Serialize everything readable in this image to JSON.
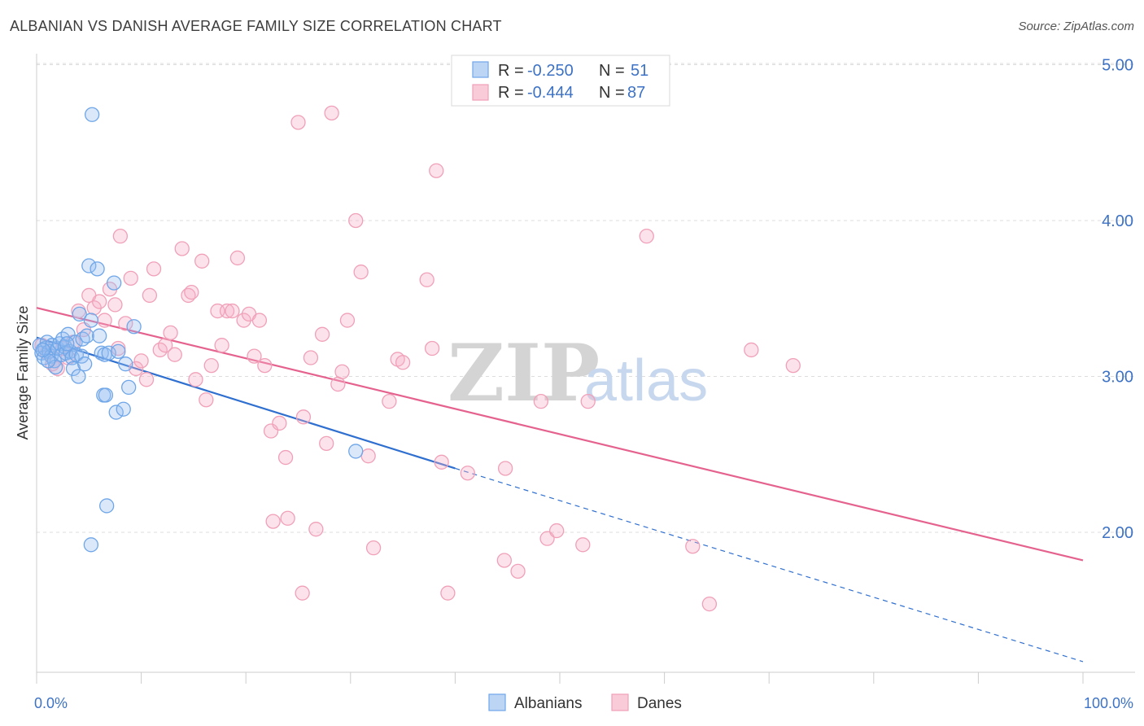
{
  "title": "ALBANIAN VS DANISH AVERAGE FAMILY SIZE CORRELATION CHART",
  "source": "Source: ZipAtlas.com",
  "watermark": {
    "zip": "ZIP",
    "atlas": "atlas"
  },
  "colors": {
    "albanians": "#6fa6e8",
    "albanians_line": "#2f6fcf",
    "danes": "#f0a0b8",
    "danes_line": "#e5628f",
    "grid": "#dddddd",
    "tick_label": "#3d72c4"
  },
  "legend": {
    "r_label": "R =",
    "n_label": "N =",
    "albanians": {
      "r": "-0.250",
      "n": "51"
    },
    "danes": {
      "r": "-0.444",
      "n": "87"
    }
  },
  "chart_data": {
    "type": "scatter",
    "title": "ALBANIAN VS DANISH AVERAGE FAMILY SIZE CORRELATION CHART",
    "xlabel": "",
    "ylabel": "Average Family Size",
    "xlim": [
      0,
      100
    ],
    "ylim": [
      1.1,
      5.1
    ],
    "x_tick_labels": [
      "0.0%",
      "100.0%"
    ],
    "y_ticks": [
      2.0,
      3.0,
      4.0,
      5.0
    ],
    "y_tick_labels": [
      "2.00",
      "3.00",
      "4.00",
      "5.00"
    ],
    "grid": true,
    "legend_position": "top-center",
    "series": [
      {
        "name": "Albanians",
        "r": -0.25,
        "n": 51,
        "trend": {
          "x0": 0,
          "y0": 3.25,
          "x1": 40,
          "y1": 2.41,
          "dashed_to_x": 100,
          "dashed_to_y": 1.17
        },
        "points": [
          [
            0.3,
            3.2
          ],
          [
            0.5,
            3.15
          ],
          [
            0.7,
            3.12
          ],
          [
            0.8,
            3.18
          ],
          [
            1.0,
            3.22
          ],
          [
            1.2,
            3.16
          ],
          [
            1.4,
            3.13
          ],
          [
            1.5,
            3.2
          ],
          [
            1.7,
            3.1
          ],
          [
            1.8,
            3.06
          ],
          [
            2.0,
            3.18
          ],
          [
            2.2,
            3.21
          ],
          [
            2.4,
            3.14
          ],
          [
            2.5,
            3.24
          ],
          [
            2.7,
            3.19
          ],
          [
            2.8,
            3.15
          ],
          [
            3.0,
            3.27
          ],
          [
            3.2,
            3.16
          ],
          [
            3.4,
            3.12
          ],
          [
            3.5,
            3.05
          ],
          [
            3.7,
            3.22
          ],
          [
            3.8,
            3.14
          ],
          [
            4.0,
            3.0
          ],
          [
            4.1,
            3.4
          ],
          [
            4.3,
            3.13
          ],
          [
            4.4,
            3.24
          ],
          [
            4.6,
            3.08
          ],
          [
            4.8,
            3.26
          ],
          [
            5.0,
            3.71
          ],
          [
            5.2,
            3.36
          ],
          [
            5.3,
            4.68
          ],
          [
            5.2,
            1.92
          ],
          [
            5.8,
            3.69
          ],
          [
            6.0,
            3.26
          ],
          [
            6.2,
            3.15
          ],
          [
            6.4,
            2.88
          ],
          [
            6.5,
            3.14
          ],
          [
            6.6,
            2.88
          ],
          [
            6.7,
            2.17
          ],
          [
            6.9,
            3.15
          ],
          [
            7.4,
            3.6
          ],
          [
            7.6,
            2.77
          ],
          [
            7.8,
            3.16
          ],
          [
            8.3,
            2.79
          ],
          [
            8.5,
            3.08
          ],
          [
            8.8,
            2.93
          ],
          [
            9.3,
            3.32
          ],
          [
            30.5,
            2.52
          ],
          [
            1.1,
            3.1
          ],
          [
            2.9,
            3.21
          ],
          [
            0.6,
            3.17
          ]
        ]
      },
      {
        "name": "Danes",
        "r": -0.444,
        "n": 87,
        "trend": {
          "x0": 0,
          "y0": 3.44,
          "x1": 100,
          "y1": 1.82
        },
        "points": [
          [
            0.5,
            3.2
          ],
          [
            1.0,
            3.15
          ],
          [
            1.5,
            3.08
          ],
          [
            2.0,
            3.05
          ],
          [
            2.5,
            3.18
          ],
          [
            3.0,
            3.12
          ],
          [
            3.5,
            3.22
          ],
          [
            4.0,
            3.42
          ],
          [
            4.5,
            3.3
          ],
          [
            5.0,
            3.52
          ],
          [
            5.5,
            3.44
          ],
          [
            6.0,
            3.48
          ],
          [
            6.5,
            3.36
          ],
          [
            7.0,
            3.56
          ],
          [
            7.5,
            3.46
          ],
          [
            7.8,
            3.18
          ],
          [
            8.0,
            3.9
          ],
          [
            8.5,
            3.34
          ],
          [
            9.0,
            3.63
          ],
          [
            9.5,
            3.05
          ],
          [
            10.0,
            3.1
          ],
          [
            10.5,
            2.98
          ],
          [
            10.8,
            3.52
          ],
          [
            11.2,
            3.69
          ],
          [
            11.8,
            3.17
          ],
          [
            12.3,
            3.2
          ],
          [
            12.8,
            3.28
          ],
          [
            13.2,
            3.14
          ],
          [
            13.9,
            3.82
          ],
          [
            14.5,
            3.52
          ],
          [
            14.8,
            3.54
          ],
          [
            15.2,
            2.98
          ],
          [
            15.8,
            3.74
          ],
          [
            16.2,
            2.85
          ],
          [
            16.7,
            3.07
          ],
          [
            17.3,
            3.42
          ],
          [
            17.7,
            3.2
          ],
          [
            18.2,
            3.42
          ],
          [
            18.7,
            3.42
          ],
          [
            19.2,
            3.76
          ],
          [
            19.8,
            3.36
          ],
          [
            20.3,
            3.4
          ],
          [
            20.8,
            3.13
          ],
          [
            21.3,
            3.36
          ],
          [
            21.8,
            3.07
          ],
          [
            22.4,
            2.65
          ],
          [
            22.6,
            2.07
          ],
          [
            23.2,
            2.7
          ],
          [
            23.8,
            2.48
          ],
          [
            24.0,
            2.09
          ],
          [
            25.0,
            4.63
          ],
          [
            25.4,
            1.61
          ],
          [
            25.5,
            2.74
          ],
          [
            26.2,
            3.12
          ],
          [
            26.7,
            2.02
          ],
          [
            27.3,
            3.27
          ],
          [
            27.7,
            2.57
          ],
          [
            28.2,
            4.69
          ],
          [
            28.8,
            2.95
          ],
          [
            29.2,
            3.03
          ],
          [
            29.7,
            3.36
          ],
          [
            30.5,
            4.0
          ],
          [
            31.0,
            3.67
          ],
          [
            31.7,
            2.49
          ],
          [
            32.2,
            1.9
          ],
          [
            33.7,
            2.84
          ],
          [
            34.5,
            3.11
          ],
          [
            35.0,
            3.09
          ],
          [
            37.3,
            3.62
          ],
          [
            37.8,
            3.18
          ],
          [
            38.2,
            4.32
          ],
          [
            39.3,
            1.61
          ],
          [
            38.7,
            2.45
          ],
          [
            41.2,
            2.38
          ],
          [
            44.7,
            1.82
          ],
          [
            44.8,
            2.41
          ],
          [
            46.0,
            1.75
          ],
          [
            48.2,
            2.84
          ],
          [
            48.8,
            1.96
          ],
          [
            49.7,
            2.01
          ],
          [
            52.2,
            1.92
          ],
          [
            52.7,
            2.84
          ],
          [
            58.3,
            3.9
          ],
          [
            62.7,
            1.91
          ],
          [
            64.3,
            1.54
          ],
          [
            68.3,
            3.17
          ],
          [
            72.3,
            3.07
          ]
        ]
      }
    ],
    "extra_points_note": "",
    "bottom_legend": [
      "Albanians",
      "Danes"
    ]
  }
}
